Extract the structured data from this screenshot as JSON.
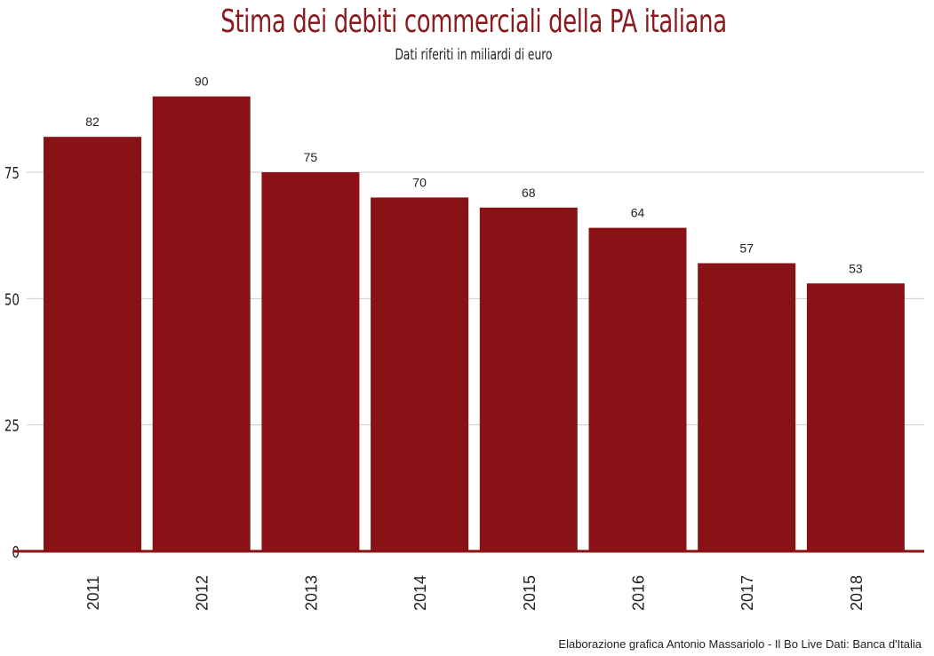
{
  "chart_data": {
    "type": "bar",
    "title": "Stima dei debiti commerciali della PA italiana",
    "subtitle": "Dati riferiti in miliardi di euro",
    "caption": "Elaborazione grafica Antonio Massariolo - Il Bo Live Dati: Banca d'Italia",
    "categories": [
      "2011",
      "2012",
      "2013",
      "2014",
      "2015",
      "2016",
      "2017",
      "2018"
    ],
    "values": [
      82,
      90,
      75,
      70,
      68,
      64,
      57,
      53
    ],
    "yticks": [
      0,
      25,
      50,
      75
    ],
    "ylim": [
      0,
      90
    ],
    "grid": true,
    "bar_color": "#891217",
    "title_color": "#8a1a1e"
  }
}
